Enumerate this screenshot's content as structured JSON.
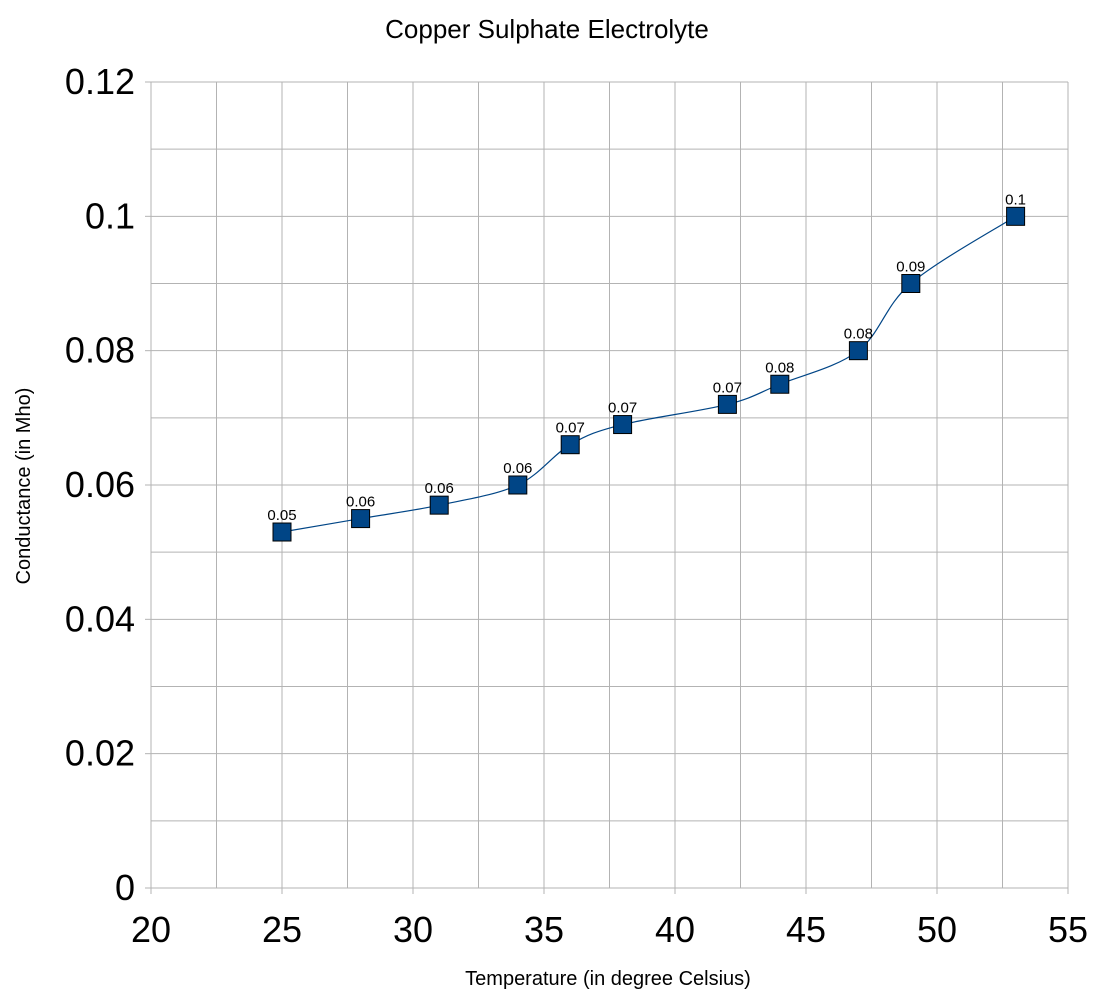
{
  "chart_data": {
    "type": "scatter",
    "title": "Copper Sulphate Electrolyte",
    "xlabel": "Temperature (in degree Celsius)",
    "ylabel": "Conductance (in Mho)",
    "xlim": [
      20,
      55
    ],
    "ylim": [
      0,
      0.12
    ],
    "x_ticks": [
      20,
      25,
      30,
      35,
      40,
      45,
      50,
      55
    ],
    "x_tick_labels": [
      "20",
      "25",
      "30",
      "35",
      "40",
      "45",
      "50",
      "55"
    ],
    "y_ticks": [
      0,
      0.02,
      0.04,
      0.06,
      0.08,
      0.1,
      0.12
    ],
    "y_tick_labels": [
      "0",
      "0.02",
      "0.04",
      "0.06",
      "0.08",
      "0.1",
      "0.12"
    ],
    "grid": true,
    "legend": "none",
    "line_style": "smoothed",
    "series": [
      {
        "x": [
          25,
          28,
          31,
          34,
          36,
          38,
          42,
          44,
          47,
          49,
          53
        ],
        "values": [
          0.053,
          0.055,
          0.057,
          0.06,
          0.066,
          0.069,
          0.072,
          0.075,
          0.08,
          0.09,
          0.1
        ],
        "data_labels": [
          "0.05",
          "0.06",
          "0.06",
          "0.06",
          "0.07",
          "0.07",
          "0.07",
          "0.08",
          "0.08",
          "0.09",
          "0.1"
        ],
        "color": "#004586",
        "marker": "square"
      }
    ]
  }
}
